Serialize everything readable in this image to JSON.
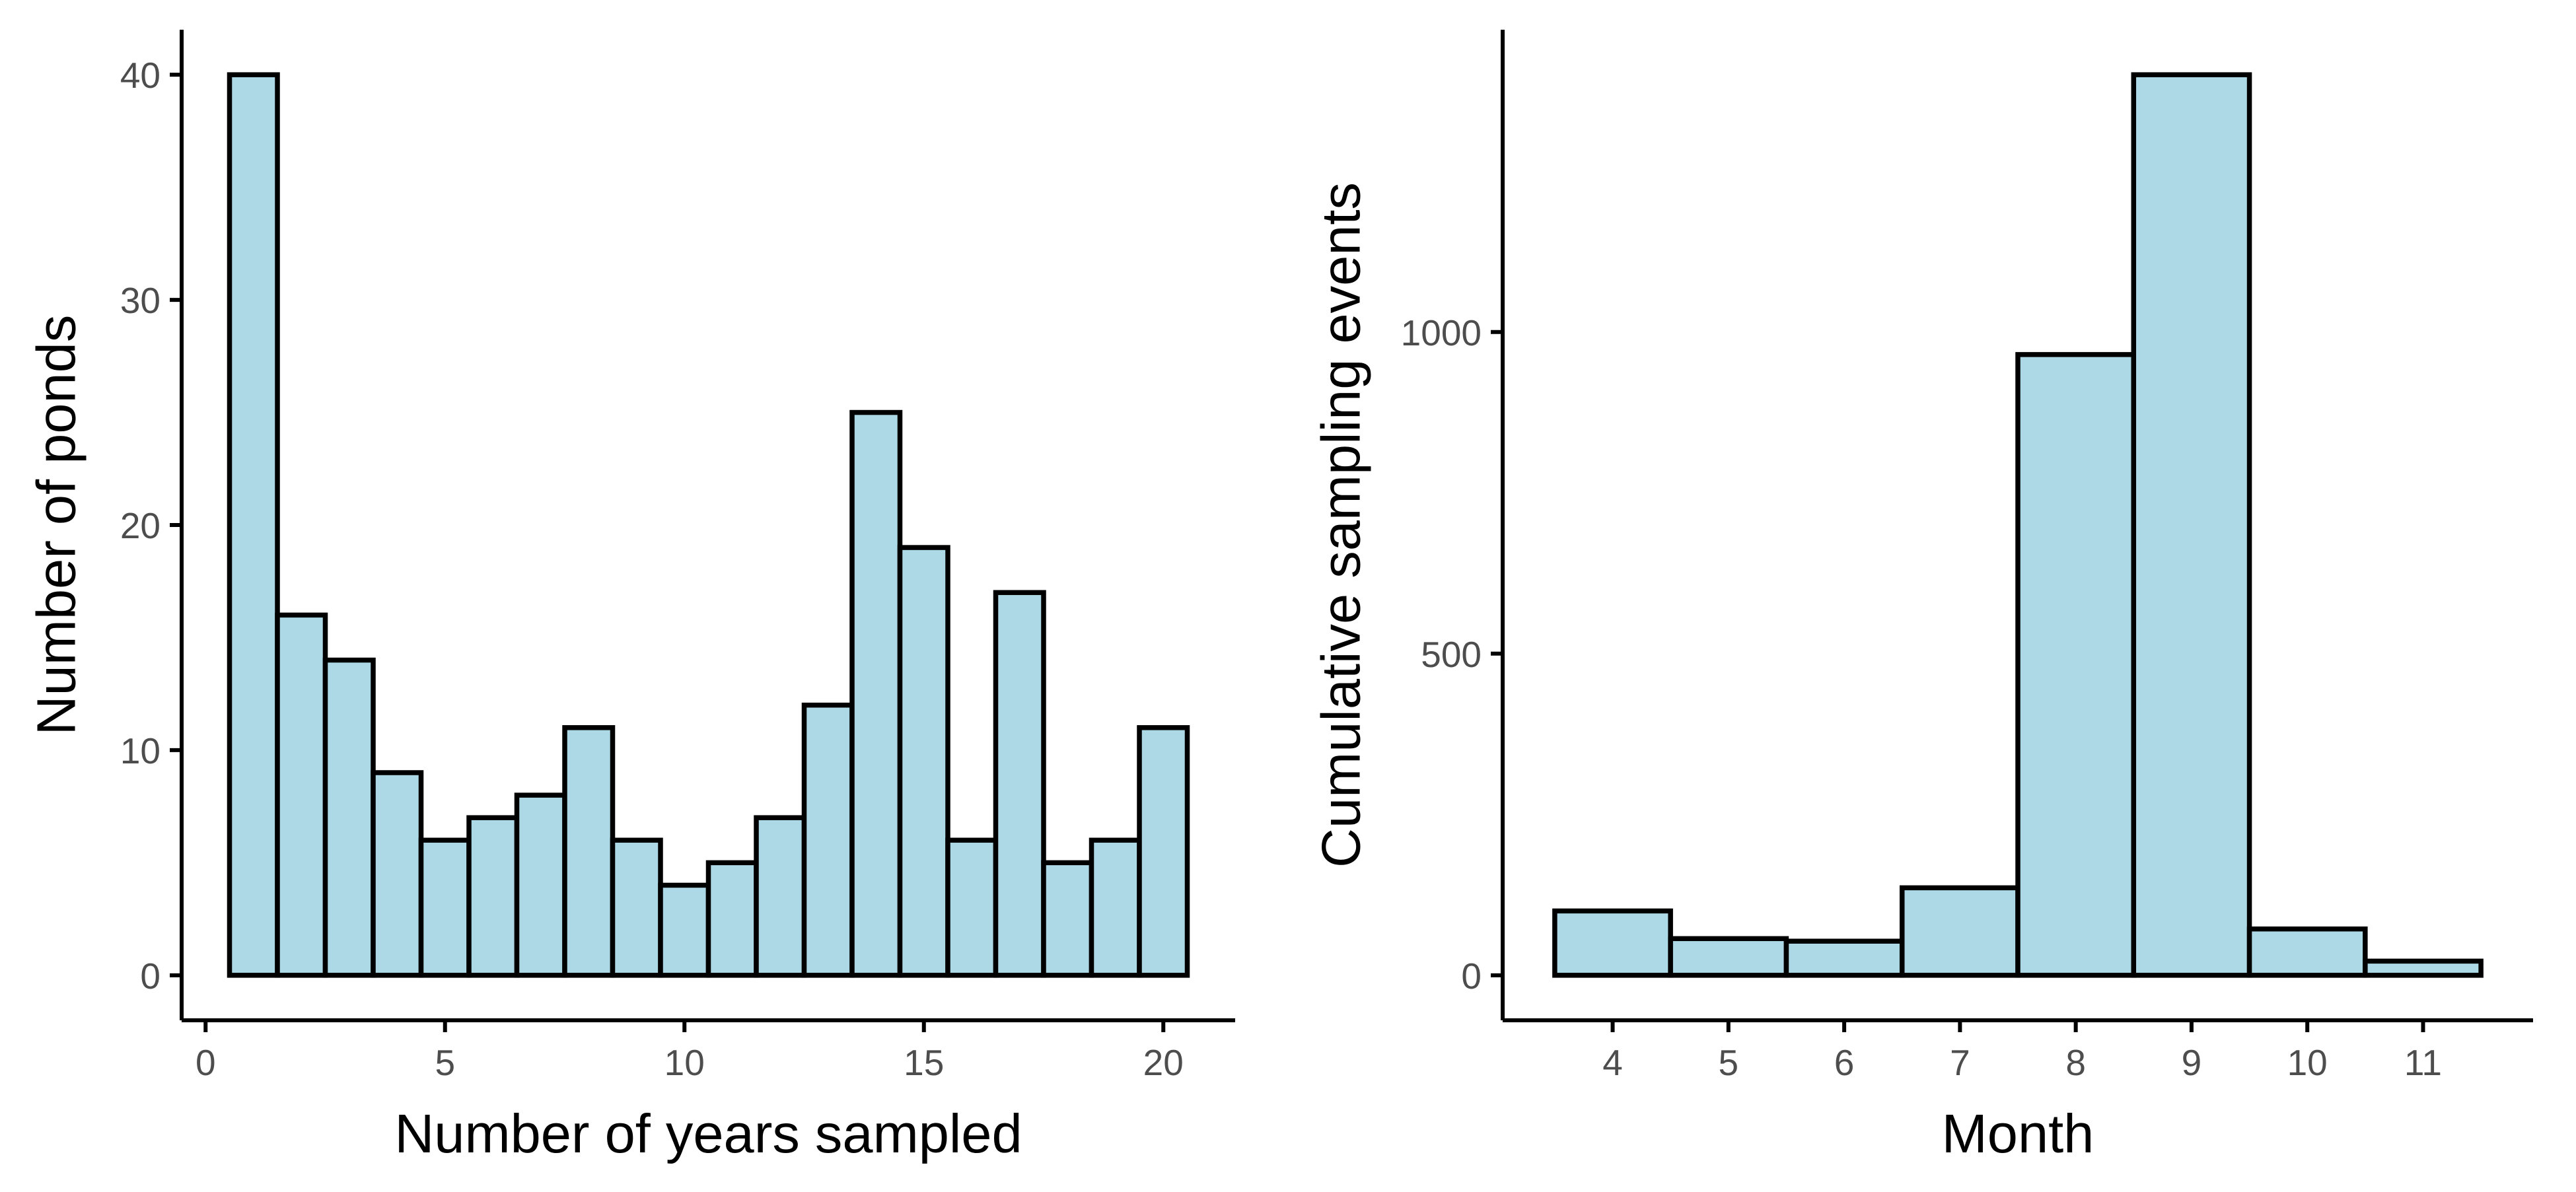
{
  "colors": {
    "bar_fill": "#ADD8E6",
    "bar_outline": "#000000",
    "tick_label": "#4d4d4d"
  },
  "chart_data": [
    {
      "type": "bar",
      "title": "",
      "xlabel": "Number of years sampled",
      "ylabel": "Number of ponds",
      "x": [
        1,
        2,
        3,
        4,
        5,
        6,
        7,
        8,
        9,
        10,
        11,
        12,
        13,
        14,
        15,
        16,
        17,
        18,
        19,
        20
      ],
      "values": [
        40,
        16,
        14,
        9,
        6,
        7,
        8,
        11,
        6,
        4,
        5,
        7,
        12,
        25,
        19,
        6,
        17,
        5,
        6,
        11
      ],
      "xlim": [
        -0.5,
        21.5
      ],
      "ylim": [
        -2,
        42
      ],
      "xticks": [
        0,
        5,
        10,
        15,
        20
      ],
      "xtick_labels": [
        "0",
        "5",
        "10",
        "15",
        "20"
      ],
      "yticks": [
        0,
        10,
        20,
        30,
        40
      ],
      "ytick_labels": [
        "0",
        "10",
        "20",
        "30",
        "40"
      ],
      "grid": false,
      "legend": "none"
    },
    {
      "type": "bar",
      "title": "",
      "xlabel": "Month",
      "ylabel": "Cumulative sampling events",
      "x": [
        4,
        5,
        6,
        7,
        8,
        9,
        10,
        11
      ],
      "values": [
        100,
        57,
        53,
        136,
        965,
        1400,
        72,
        22
      ],
      "xlim": [
        3.05,
        11.95
      ],
      "ylim": [
        -70,
        1470
      ],
      "xticks": [
        4,
        5,
        6,
        7,
        8,
        9,
        10,
        11
      ],
      "xtick_labels": [
        "4",
        "5",
        "6",
        "7",
        "8",
        "9",
        "10",
        "11"
      ],
      "yticks": [
        0,
        500,
        1000
      ],
      "ytick_labels": [
        "0",
        "500",
        "1000"
      ],
      "grid": false,
      "legend": "none"
    }
  ]
}
